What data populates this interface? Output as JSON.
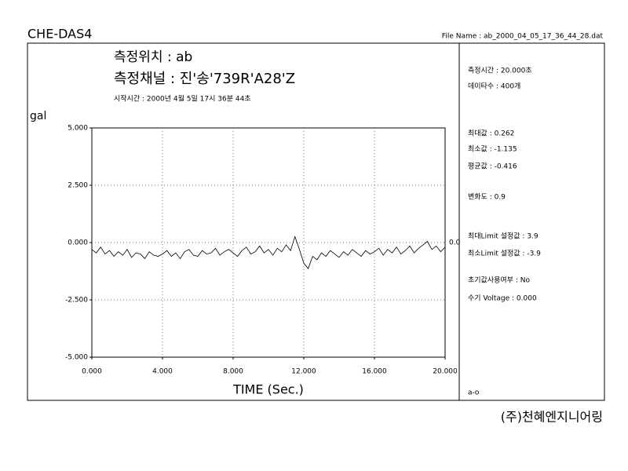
{
  "header": {
    "app": "CHE-DAS4",
    "file_name": "File Name : ab_2000_04_05_17_36_44_28.dat",
    "location": "측정위치 : ab",
    "channel": "측정채널 : 진'송'739R'A28'Z",
    "start_time": "시작시간 : 2000년 4월 5일 17시 36분 44초"
  },
  "info": {
    "lines": [
      "측정시간 : 20.000초",
      "데이타수 : 400개",
      "최대값 : 0.262",
      "최소값 : -1.135",
      "평균값 : -0.416",
      "변화도 : 0.9",
      "최대Limit 설정값 : 3.9",
      "최소Limit 설정값 : -3.9",
      "초기값사용여부 : No",
      "수기 Voltage : 0.000"
    ],
    "code": "a-o"
  },
  "footer": "(주)천혜엔지니어링",
  "chart_data": {
    "type": "line",
    "ylabel": "gal",
    "xlabel": "TIME (Sec.)",
    "zero_label": "0.0",
    "color": "#000000",
    "grid": true,
    "x": [
      0,
      0.25,
      0.5,
      0.75,
      1,
      1.25,
      1.5,
      1.75,
      2,
      2.25,
      2.5,
      2.75,
      3,
      3.25,
      3.5,
      3.75,
      4,
      4.25,
      4.5,
      4.75,
      5,
      5.25,
      5.5,
      5.75,
      6,
      6.25,
      6.5,
      6.75,
      7,
      7.25,
      7.5,
      7.75,
      8,
      8.25,
      8.5,
      8.75,
      9,
      9.25,
      9.5,
      9.75,
      10,
      10.25,
      10.5,
      10.75,
      11,
      11.25,
      11.5,
      11.75,
      12,
      12.25,
      12.5,
      12.75,
      13,
      13.25,
      13.5,
      13.75,
      14,
      14.25,
      14.5,
      14.75,
      15,
      15.25,
      15.5,
      15.75,
      16,
      16.25,
      16.5,
      16.75,
      17,
      17.25,
      17.5,
      17.75,
      18,
      18.25,
      18.5,
      18.75,
      19,
      19.25,
      19.5,
      19.75,
      20
    ],
    "values": [
      -0.3,
      -0.45,
      -0.2,
      -0.5,
      -0.35,
      -0.6,
      -0.4,
      -0.55,
      -0.3,
      -0.65,
      -0.45,
      -0.5,
      -0.7,
      -0.4,
      -0.55,
      -0.6,
      -0.5,
      -0.35,
      -0.6,
      -0.45,
      -0.7,
      -0.4,
      -0.3,
      -0.55,
      -0.6,
      -0.35,
      -0.5,
      -0.45,
      -0.25,
      -0.55,
      -0.4,
      -0.3,
      -0.45,
      -0.6,
      -0.35,
      -0.2,
      -0.5,
      -0.4,
      -0.15,
      -0.45,
      -0.3,
      -0.55,
      -0.25,
      -0.4,
      -0.1,
      -0.35,
      0.262,
      -0.3,
      -0.9,
      -1.135,
      -0.6,
      -0.75,
      -0.45,
      -0.6,
      -0.35,
      -0.5,
      -0.65,
      -0.4,
      -0.55,
      -0.3,
      -0.45,
      -0.6,
      -0.35,
      -0.5,
      -0.4,
      -0.25,
      -0.55,
      -0.3,
      -0.45,
      -0.2,
      -0.5,
      -0.35,
      -0.15,
      -0.45,
      -0.25,
      -0.1,
      0.05,
      -0.3,
      -0.15,
      -0.4,
      -0.2
    ],
    "xlim": [
      0,
      20
    ],
    "ylim": [
      -5,
      5
    ],
    "xticks": [
      {
        "value": 0,
        "label": "0.000"
      },
      {
        "value": 4,
        "label": "4.000"
      },
      {
        "value": 8,
        "label": "8.000"
      },
      {
        "value": 12,
        "label": "12.000"
      },
      {
        "value": 16,
        "label": "16.000"
      },
      {
        "value": 20,
        "label": "20.000"
      }
    ],
    "yticks": [
      {
        "value": -5,
        "label": "-5.000"
      },
      {
        "value": -2.5,
        "label": "-2.500"
      },
      {
        "value": 0,
        "label": "0.000"
      },
      {
        "value": 2.5,
        "label": "2.500"
      },
      {
        "value": 5,
        "label": "5.000"
      }
    ]
  }
}
